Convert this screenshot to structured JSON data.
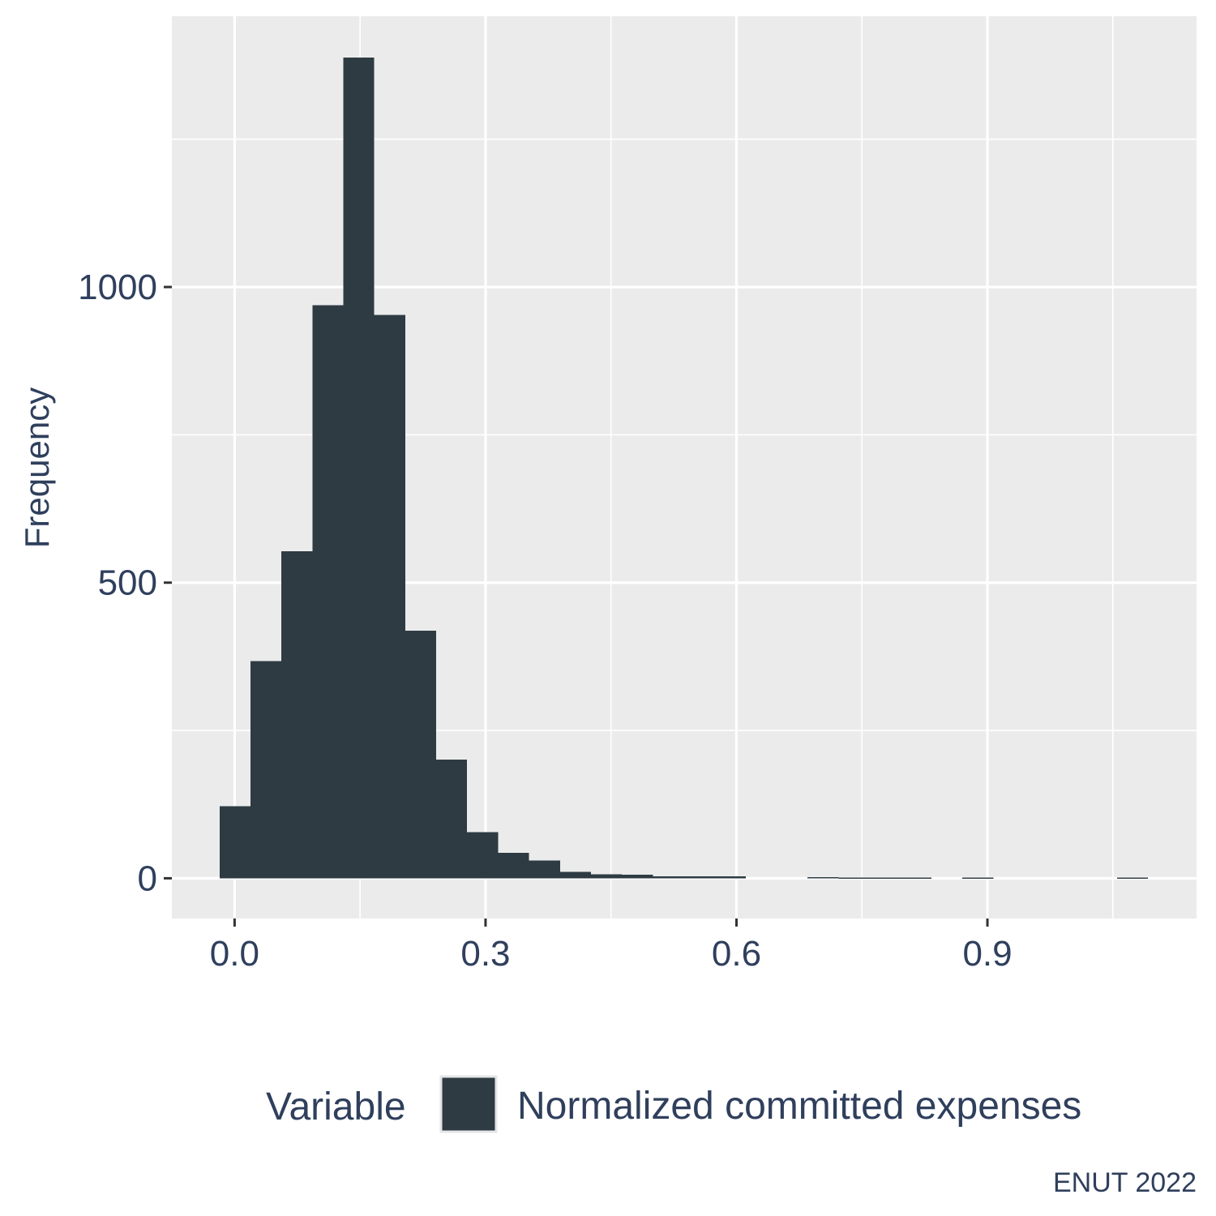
{
  "chart_data": {
    "type": "bar",
    "subtype": "histogram",
    "xlabel": "",
    "ylabel": "Frequency",
    "xlim": [
      -0.075,
      1.15
    ],
    "ylim": [
      -68,
      1458
    ],
    "x_ticks": [
      0.0,
      0.3,
      0.6,
      0.9
    ],
    "x_tick_labels": [
      "0.0",
      "0.3",
      "0.6",
      "0.9"
    ],
    "y_ticks": [
      0,
      500,
      1000
    ],
    "y_tick_labels": [
      "0",
      "500",
      "1000"
    ],
    "grid": true,
    "bin_width": 0.037,
    "bins": [
      {
        "x0": -0.018,
        "x1": 0.019,
        "value": 122
      },
      {
        "x0": 0.019,
        "x1": 0.056,
        "value": 367
      },
      {
        "x0": 0.056,
        "x1": 0.093,
        "value": 553
      },
      {
        "x0": 0.093,
        "x1": 0.13,
        "value": 969
      },
      {
        "x0": 0.13,
        "x1": 0.167,
        "value": 1388
      },
      {
        "x0": 0.167,
        "x1": 0.204,
        "value": 953
      },
      {
        "x0": 0.204,
        "x1": 0.241,
        "value": 419
      },
      {
        "x0": 0.241,
        "x1": 0.278,
        "value": 201
      },
      {
        "x0": 0.278,
        "x1": 0.315,
        "value": 78
      },
      {
        "x0": 0.315,
        "x1": 0.352,
        "value": 43
      },
      {
        "x0": 0.352,
        "x1": 0.389,
        "value": 30
      },
      {
        "x0": 0.389,
        "x1": 0.426,
        "value": 11
      },
      {
        "x0": 0.426,
        "x1": 0.463,
        "value": 7
      },
      {
        "x0": 0.463,
        "x1": 0.5,
        "value": 6
      },
      {
        "x0": 0.5,
        "x1": 0.537,
        "value": 3
      },
      {
        "x0": 0.537,
        "x1": 0.574,
        "value": 3
      },
      {
        "x0": 0.574,
        "x1": 0.611,
        "value": 3
      },
      {
        "x0": 0.685,
        "x1": 0.722,
        "value": 2
      },
      {
        "x0": 0.722,
        "x1": 0.759,
        "value": 1
      },
      {
        "x0": 0.759,
        "x1": 0.796,
        "value": 1
      },
      {
        "x0": 0.796,
        "x1": 0.833,
        "value": 1
      },
      {
        "x0": 0.87,
        "x1": 0.907,
        "value": 1
      },
      {
        "x0": 1.055,
        "x1": 1.092,
        "value": 1
      }
    ],
    "legend": {
      "position": "bottom",
      "title": "Variable",
      "entries": [
        {
          "label": "Normalized committed expenses",
          "color": "#2e3b43"
        }
      ]
    },
    "caption": "ENUT 2022",
    "colors": {
      "bar": "#2e3b43",
      "panel_background": "#ebebeb",
      "grid": "#ffffff",
      "text": "#2f3f5c",
      "tick": "#333333"
    }
  }
}
